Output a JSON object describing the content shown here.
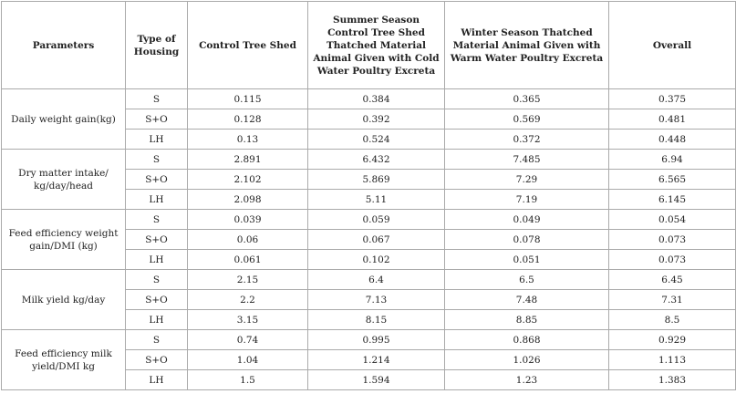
{
  "table": {
    "header": [
      "Parameters",
      "Type of Housing",
      "Control Tree Shed",
      "Summer Season Control Tree Shed Thatched Material Animal Given with Cold Water Poultry Excreta",
      "Winter Season Thatched Material Animal Given with Warm Water Poultry Excreta",
      "Overall"
    ],
    "groups": [
      {
        "parameter": "Daily weight gain(kg)",
        "rows": [
          [
            "S",
            "0.115",
            "0.384",
            "0.365",
            "0.375"
          ],
          [
            "S+O",
            "0.128",
            "0.392",
            "0.569",
            "0.481"
          ],
          [
            "LH",
            "0.13",
            "0.524",
            "0.372",
            "0.448"
          ]
        ]
      },
      {
        "parameter": "Dry matter intake/ kg/day/head",
        "rows": [
          [
            "S",
            "2.891",
            "6.432",
            "7.485",
            "6.94"
          ],
          [
            "S+O",
            "2.102",
            "5.869",
            "7.29",
            "6.565"
          ],
          [
            "LH",
            "2.098",
            "5.11",
            "7.19",
            "6.145"
          ]
        ]
      },
      {
        "parameter": "Feed efficiency weight gain/DMI (kg)",
        "rows": [
          [
            "S",
            "0.039",
            "0.059",
            "0.049",
            "0.054"
          ],
          [
            "S+O",
            "0.06",
            "0.067",
            "0.078",
            "0.073"
          ],
          [
            "LH",
            "0.061",
            "0.102",
            "0.051",
            "0.073"
          ]
        ]
      },
      {
        "parameter": "Milk yield kg/day",
        "rows": [
          [
            "S",
            "2.15",
            "6.4",
            "6.5",
            "6.45"
          ],
          [
            "S+O",
            "2.2",
            "7.13",
            "7.48",
            "7.31"
          ],
          [
            "LH",
            "3.15",
            "8.15",
            "8.85",
            "8.5"
          ]
        ]
      },
      {
        "parameter": "Feed efficiency milk yield/DMI kg",
        "rows": [
          [
            "S",
            "0.74",
            "0.995",
            "0.868",
            "0.929"
          ],
          [
            "S+O",
            "1.04",
            "1.214",
            "1.026",
            "1.113"
          ],
          [
            "LH",
            "1.5",
            "1.594",
            "1.23",
            "1.383"
          ]
        ]
      }
    ]
  }
}
